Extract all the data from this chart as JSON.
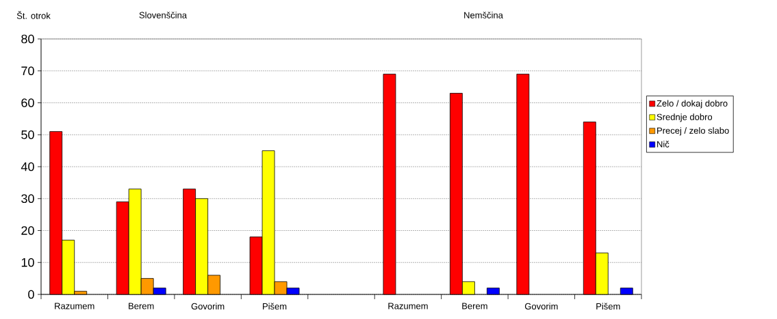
{
  "chart_data": {
    "type": "bar",
    "ylabel": "Št. otrok",
    "annotations": [
      "Slovenščina",
      "Nemščina"
    ],
    "categories": [
      "Razumem",
      "Berem",
      "Govorim",
      "Pišem",
      null,
      "Razumem",
      "Berem",
      "Govorim",
      "Pišem"
    ],
    "series": [
      {
        "name": "Zelo / dokaj dobro",
        "color": "#ff0000",
        "values": [
          51,
          29,
          33,
          18,
          null,
          69,
          63,
          69,
          54
        ]
      },
      {
        "name": "Srednje dobro",
        "color": "#ffff00",
        "values": [
          17,
          33,
          30,
          45,
          null,
          null,
          4,
          null,
          13
        ]
      },
      {
        "name": "Precej / zelo slabo",
        "color": "#ff9900",
        "values": [
          1,
          5,
          6,
          4,
          null,
          null,
          null,
          null,
          null
        ]
      },
      {
        "name": "Nič",
        "color": "#0000ff",
        "values": [
          null,
          2,
          null,
          2,
          null,
          null,
          2,
          null,
          2
        ]
      }
    ],
    "ylim": [
      0,
      80
    ],
    "yticks": [
      0,
      10,
      20,
      30,
      40,
      50,
      60,
      70,
      80
    ],
    "grid": "y",
    "legend": "right"
  }
}
